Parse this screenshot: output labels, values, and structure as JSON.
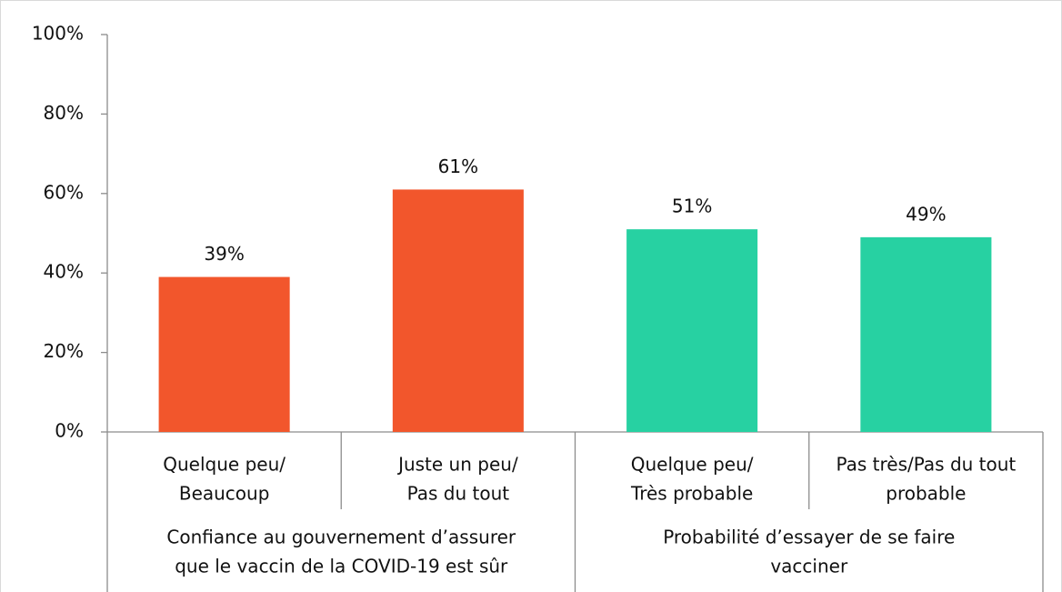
{
  "chart_data": {
    "type": "bar",
    "groups": [
      {
        "name": [
          "Confiance au gouvernement d’assurer",
          "que le vaccin de la COVID-19 est sûr"
        ],
        "color": "#f2562c",
        "categories": [
          [
            "Quelque peu/",
            "Beaucoup"
          ],
          [
            "Juste un peu/",
            "Pas du tout"
          ]
        ],
        "values": [
          39,
          61
        ],
        "value_labels": [
          "39%",
          "61%"
        ]
      },
      {
        "name": [
          "Probabilité d’essayer de se faire",
          "vacciner"
        ],
        "color": "#27d1a2",
        "categories": [
          [
            "Quelque peu/",
            "Très probable"
          ],
          [
            "Pas très/Pas du tout",
            "probable"
          ]
        ],
        "values": [
          51,
          49
        ],
        "value_labels": [
          "51%",
          "49%"
        ]
      }
    ],
    "ylim": [
      0,
      100
    ],
    "yticks": [
      {
        "value": 0,
        "label": "0%"
      },
      {
        "value": 20,
        "label": "20%"
      },
      {
        "value": 40,
        "label": "40%"
      },
      {
        "value": 60,
        "label": "60%"
      },
      {
        "value": 80,
        "label": "80%"
      },
      {
        "value": 100,
        "label": "100%"
      }
    ],
    "grid": false
  }
}
